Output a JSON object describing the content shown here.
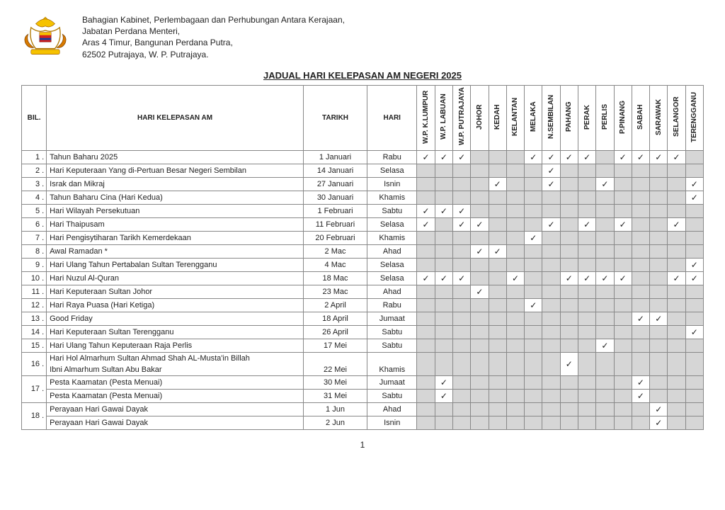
{
  "org": {
    "line1": "Bahagian Kabinet, Perlembagaan dan Perhubungan Antara Kerajaan,",
    "line2": "Jabatan Perdana Menteri,",
    "line3": "Aras 4 Timur, Bangunan Perdana Putra,",
    "line4": "62502 Putrajaya, W. P. Putrajaya."
  },
  "title": "JADUAL HARI KELEPASAN AM NEGERI 2025",
  "columns": {
    "bil": "BIL.",
    "name": "HARI KELEPASAN AM",
    "date": "TARIKH",
    "day": "HARI"
  },
  "regions": [
    "W.P. K.LUMPUR",
    "W.P. LABUAN",
    "W.P. PUTRAJAYA",
    "JOHOR",
    "KEDAH",
    "KELANTAN",
    "MELAKA",
    "N.SEMBILAN",
    "PAHANG",
    "PERAK",
    "PERLIS",
    "P.PINANG",
    "SABAH",
    "SARAWAK",
    "SELANGOR",
    "TERENGGANU"
  ],
  "check": "✓",
  "pagenum": "1",
  "rows": [
    {
      "bil": "1 .",
      "name": "Tahun Baharu 2025",
      "date": "1 Januari",
      "day": "Rabu",
      "marks": [
        1,
        1,
        1,
        0,
        0,
        0,
        1,
        1,
        1,
        1,
        0,
        1,
        1,
        1,
        1,
        0
      ]
    },
    {
      "bil": "2 .",
      "name": "Hari Keputeraan Yang di-Pertuan Besar Negeri Sembilan",
      "date": "14 Januari",
      "day": "Selasa",
      "marks": [
        0,
        0,
        0,
        0,
        0,
        0,
        0,
        1,
        0,
        0,
        0,
        0,
        0,
        0,
        0,
        0
      ]
    },
    {
      "bil": "3 .",
      "name": "Israk dan Mikraj",
      "date": "27 Januari",
      "day": "Isnin",
      "marks": [
        0,
        0,
        0,
        0,
        1,
        0,
        0,
        1,
        0,
        0,
        1,
        0,
        0,
        0,
        0,
        1
      ]
    },
    {
      "bil": "4 .",
      "name": "Tahun Baharu Cina (Hari Kedua)",
      "date": "30 Januari",
      "day": "Khamis",
      "marks": [
        0,
        0,
        0,
        0,
        0,
        0,
        0,
        0,
        0,
        0,
        0,
        0,
        0,
        0,
        0,
        1
      ]
    },
    {
      "bil": "5 .",
      "name": "Hari Wilayah Persekutuan",
      "date": "1 Februari",
      "day": "Sabtu",
      "marks": [
        1,
        1,
        1,
        0,
        0,
        0,
        0,
        0,
        0,
        0,
        0,
        0,
        0,
        0,
        0,
        0
      ]
    },
    {
      "bil": "6 .",
      "name": "Hari Thaipusam",
      "date": "11 Februari",
      "day": "Selasa",
      "marks": [
        1,
        0,
        1,
        1,
        0,
        0,
        0,
        1,
        0,
        1,
        0,
        1,
        0,
        0,
        1,
        0
      ]
    },
    {
      "bil": "7 .",
      "name": "Hari Pengisytiharan Tarikh Kemerdekaan",
      "date": "20 Februari",
      "day": "Khamis",
      "marks": [
        0,
        0,
        0,
        0,
        0,
        0,
        1,
        0,
        0,
        0,
        0,
        0,
        0,
        0,
        0,
        0
      ]
    },
    {
      "bil": "8 .",
      "name": "Awal Ramadan *",
      "date": "2 Mac",
      "day": "Ahad",
      "marks": [
        0,
        0,
        0,
        1,
        1,
        0,
        0,
        0,
        0,
        0,
        0,
        0,
        0,
        0,
        0,
        0
      ]
    },
    {
      "bil": "9 .",
      "name": "Hari Ulang Tahun Pertabalan Sultan Terengganu",
      "date": "4 Mac",
      "day": "Selasa",
      "marks": [
        0,
        0,
        0,
        0,
        0,
        0,
        0,
        0,
        0,
        0,
        0,
        0,
        0,
        0,
        0,
        1
      ]
    },
    {
      "bil": "10 .",
      "name": "Hari Nuzul Al-Quran",
      "date": "18 Mac",
      "day": "Selasa",
      "marks": [
        1,
        1,
        1,
        0,
        0,
        1,
        0,
        0,
        1,
        1,
        1,
        1,
        0,
        0,
        1,
        1
      ]
    },
    {
      "bil": "11 .",
      "name": "Hari Keputeraan Sultan Johor",
      "date": "23 Mac",
      "day": "Ahad",
      "marks": [
        0,
        0,
        0,
        1,
        0,
        0,
        0,
        0,
        0,
        0,
        0,
        0,
        0,
        0,
        0,
        0
      ]
    },
    {
      "bil": "12 .",
      "name": "Hari Raya Puasa (Hari Ketiga)",
      "date": "2 April",
      "day": "Rabu",
      "marks": [
        0,
        0,
        0,
        0,
        0,
        0,
        1,
        0,
        0,
        0,
        0,
        0,
        0,
        0,
        0,
        0
      ]
    },
    {
      "bil": "13 .",
      "name": "Good Friday",
      "date": "18 April",
      "day": "Jumaat",
      "marks": [
        0,
        0,
        0,
        0,
        0,
        0,
        0,
        0,
        0,
        0,
        0,
        0,
        1,
        1,
        0,
        0
      ]
    },
    {
      "bil": "14 .",
      "name": "Hari Keputeraan Sultan Terengganu",
      "date": "26 April",
      "day": "Sabtu",
      "marks": [
        0,
        0,
        0,
        0,
        0,
        0,
        0,
        0,
        0,
        0,
        0,
        0,
        0,
        0,
        0,
        1
      ]
    },
    {
      "bil": "15 .",
      "name": "Hari Ulang Tahun Keputeraan Raja Perlis",
      "date": "17 Mei",
      "day": "Sabtu",
      "marks": [
        0,
        0,
        0,
        0,
        0,
        0,
        0,
        0,
        0,
        0,
        1,
        0,
        0,
        0,
        0,
        0
      ]
    },
    {
      "bil": "16 .",
      "rowspan": 2,
      "name": "Hari Hol Almarhum Sultan Ahmad Shah AL-Musta'in Billah Ibni Almarhum Sultan Abu Bakar",
      "date": "22 Mei",
      "day": "Khamis",
      "marks": [
        0,
        0,
        0,
        0,
        0,
        0,
        0,
        0,
        1,
        0,
        0,
        0,
        0,
        0,
        0,
        0
      ]
    },
    {
      "bil": "17 .",
      "rowspan": 2,
      "sub": [
        {
          "name": "Pesta Kaamatan (Pesta Menuai)",
          "date": "30 Mei",
          "day": "Jumaat",
          "marks": [
            0,
            1,
            0,
            0,
            0,
            0,
            0,
            0,
            0,
            0,
            0,
            0,
            1,
            0,
            0,
            0
          ]
        },
        {
          "name": "Pesta Kaamatan (Pesta Menuai)",
          "date": "31 Mei",
          "day": "Sabtu",
          "marks": [
            0,
            1,
            0,
            0,
            0,
            0,
            0,
            0,
            0,
            0,
            0,
            0,
            1,
            0,
            0,
            0
          ]
        }
      ]
    },
    {
      "bil": "18 .",
      "rowspan": 2,
      "sub": [
        {
          "name": "Perayaan Hari Gawai Dayak",
          "date": "1 Jun",
          "day": "Ahad",
          "marks": [
            0,
            0,
            0,
            0,
            0,
            0,
            0,
            0,
            0,
            0,
            0,
            0,
            0,
            1,
            0,
            0
          ]
        },
        {
          "name": "Perayaan Hari Gawai Dayak",
          "date": "2 Jun",
          "day": "Isnin",
          "marks": [
            0,
            0,
            0,
            0,
            0,
            0,
            0,
            0,
            0,
            0,
            0,
            0,
            0,
            1,
            0,
            0
          ]
        }
      ]
    }
  ]
}
